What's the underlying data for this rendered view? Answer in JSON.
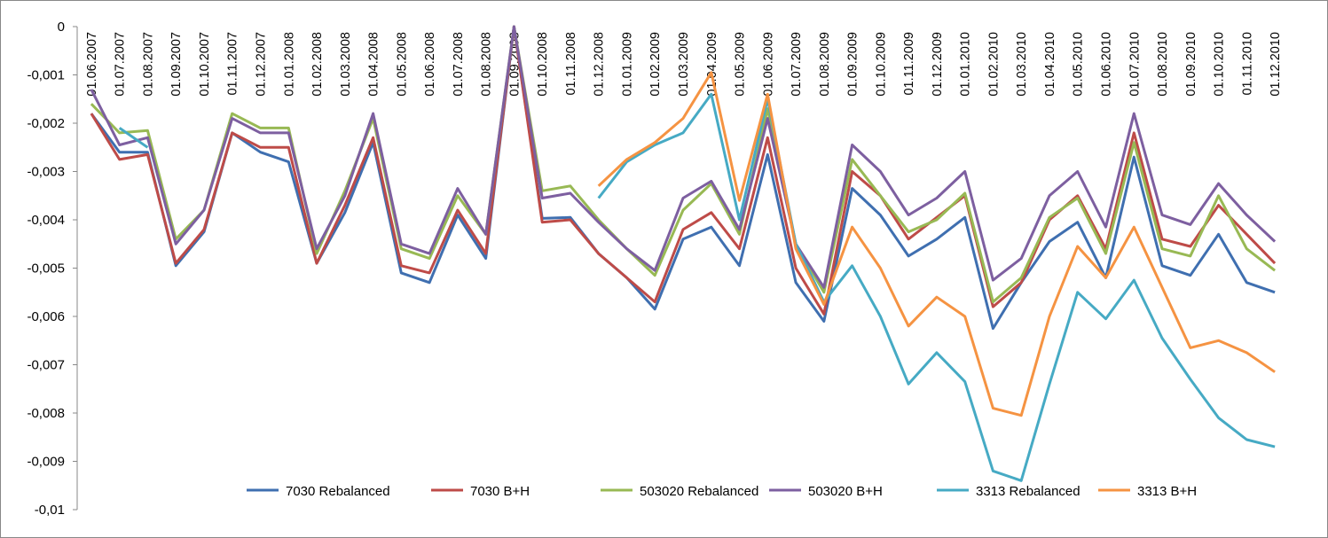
{
  "chart_data": {
    "type": "line",
    "categories": [
      "01.06.2007",
      "01.07.2007",
      "01.08.2007",
      "01.09.2007",
      "01.10.2007",
      "01.11.2007",
      "01.12.2007",
      "01.01.2008",
      "01.02.2008",
      "01.03.2008",
      "01.04.2008",
      "01.05.2008",
      "01.06.2008",
      "01.07.2008",
      "01.08.2008",
      "01.09.2008",
      "01.10.2008",
      "01.11.2008",
      "01.12.2008",
      "01.01.2009",
      "01.02.2009",
      "01.03.2009",
      "01.04.2009",
      "01.05.2009",
      "01.06.2009",
      "01.07.2009",
      "01.08.2009",
      "01.09.2009",
      "01.10.2009",
      "01.11.2009",
      "01.12.2009",
      "01.01.2010",
      "01.02.2010",
      "01.03.2010",
      "01.04.2010",
      "01.05.2010",
      "01.06.2010",
      "01.07.2010",
      "01.08.2010",
      "01.09.2010",
      "01.10.2010",
      "01.11.2010",
      "01.12.2010"
    ],
    "series": [
      {
        "name": "7030 Rebalanced",
        "color": "#3f6fb0",
        "values": [
          -0.0018,
          -0.0026,
          -0.0026,
          -0.00495,
          -0.00425,
          -0.0022,
          -0.0026,
          -0.0028,
          -0.0049,
          -0.00385,
          -0.0024,
          -0.0051,
          -0.0053,
          -0.0039,
          -0.0048,
          0,
          -0.00397,
          -0.00395,
          -0.0047,
          -0.0052,
          -0.00585,
          -0.0044,
          -0.00415,
          -0.00495,
          -0.00265,
          -0.0053,
          -0.0061,
          -0.00335,
          -0.0039,
          -0.00475,
          -0.0044,
          -0.00395,
          -0.00625,
          -0.0053,
          -0.00445,
          -0.00405,
          -0.0052,
          -0.0027,
          -0.00495,
          -0.00515,
          -0.0043,
          -0.0053,
          -0.0055
        ]
      },
      {
        "name": "7030 B+H",
        "color": "#be4b48",
        "values": [
          -0.0018,
          -0.00275,
          -0.00265,
          -0.0049,
          -0.0042,
          -0.0022,
          -0.0025,
          -0.0025,
          -0.0049,
          -0.0037,
          -0.0023,
          -0.00495,
          -0.0051,
          -0.0038,
          -0.0047,
          0,
          -0.00405,
          -0.004,
          -0.0047,
          -0.0052,
          -0.0057,
          -0.0042,
          -0.00385,
          -0.0046,
          -0.0023,
          -0.005,
          -0.00595,
          -0.003,
          -0.0035,
          -0.0044,
          -0.00395,
          -0.0035,
          -0.0058,
          -0.0053,
          -0.004,
          -0.0035,
          -0.0046,
          -0.0022,
          -0.0044,
          -0.00455,
          -0.0037,
          -0.0043,
          -0.0049
        ]
      },
      {
        "name": "503020 Rebalanced",
        "color": "#98b954",
        "values": [
          -0.0016,
          -0.0022,
          -0.00215,
          -0.0044,
          -0.0038,
          -0.0018,
          -0.0021,
          -0.0021,
          -0.0047,
          -0.0034,
          -0.0019,
          -0.0046,
          -0.0048,
          -0.0035,
          -0.0043,
          0,
          -0.0034,
          -0.0033,
          -0.004,
          -0.0046,
          -0.00515,
          -0.0038,
          -0.00325,
          -0.0043,
          -0.0017,
          -0.0045,
          -0.0055,
          -0.00275,
          -0.0035,
          -0.00425,
          -0.004,
          -0.00345,
          -0.0057,
          -0.0052,
          -0.00395,
          -0.00355,
          -0.0047,
          -0.0024,
          -0.0046,
          -0.00475,
          -0.0035,
          -0.0046,
          -0.00505
        ]
      },
      {
        "name": "503020 B+H",
        "color": "#7d5fa0",
        "values": [
          -0.0013,
          -0.00245,
          -0.0023,
          -0.0045,
          -0.0038,
          -0.0019,
          -0.0022,
          -0.0022,
          -0.0046,
          -0.0035,
          -0.0018,
          -0.0045,
          -0.0047,
          -0.00335,
          -0.0043,
          0,
          -0.00355,
          -0.00345,
          -0.00405,
          -0.0046,
          -0.00505,
          -0.00355,
          -0.0032,
          -0.0042,
          -0.0019,
          -0.0045,
          -0.0054,
          -0.00245,
          -0.003,
          -0.0039,
          -0.00355,
          -0.003,
          -0.00525,
          -0.0048,
          -0.0035,
          -0.003,
          -0.00415,
          -0.0018,
          -0.0039,
          -0.0041,
          -0.00325,
          -0.0039,
          -0.00445
        ]
      },
      {
        "name": "3313 Rebalanced",
        "color": "#46aac4",
        "values": [
          null,
          -0.0021,
          -0.0025,
          null,
          null,
          null,
          null,
          null,
          null,
          null,
          null,
          null,
          null,
          null,
          null,
          null,
          null,
          null,
          -0.00355,
          -0.0028,
          -0.00245,
          -0.0022,
          -0.0014,
          -0.004,
          -0.0015,
          -0.0045,
          -0.0057,
          -0.00495,
          -0.006,
          -0.0074,
          -0.00675,
          -0.00735,
          -0.0092,
          -0.0094,
          -0.0074,
          -0.0055,
          -0.00605,
          -0.00525,
          -0.00645,
          -0.0073,
          -0.0081,
          -0.00855,
          -0.0087
        ]
      },
      {
        "name": "3313 B+H",
        "color": "#f59342",
        "values": [
          null,
          null,
          null,
          null,
          null,
          null,
          null,
          null,
          null,
          null,
          null,
          null,
          null,
          null,
          null,
          null,
          null,
          null,
          -0.0033,
          -0.00275,
          -0.0024,
          -0.0019,
          -0.00095,
          -0.0036,
          -0.0014,
          -0.0046,
          -0.00575,
          -0.00415,
          -0.005,
          -0.0062,
          -0.0056,
          -0.006,
          -0.0079,
          -0.00805,
          -0.006,
          -0.00455,
          -0.0052,
          -0.00415,
          -0.0054,
          -0.00665,
          -0.0065,
          -0.00675,
          -0.00715
        ]
      }
    ],
    "ylim": [
      -0.01,
      0
    ],
    "yticks": [
      0,
      {
        "value": -0.001,
        "label": "-0,001"
      },
      {
        "value": -0.002,
        "label": "-0,002"
      },
      {
        "value": -0.003,
        "label": "-0,003"
      },
      {
        "value": -0.004,
        "label": "-0,004"
      },
      {
        "value": -0.005,
        "label": "-0,005"
      },
      {
        "value": -0.006,
        "label": "-0,006"
      },
      {
        "value": -0.007,
        "label": "-0,007"
      },
      {
        "value": -0.008,
        "label": "-0,008"
      },
      {
        "value": -0.009,
        "label": "-0,009"
      },
      {
        "value": -0.01,
        "label": "-0,01"
      }
    ],
    "grid": false,
    "legend": "bottom"
  }
}
